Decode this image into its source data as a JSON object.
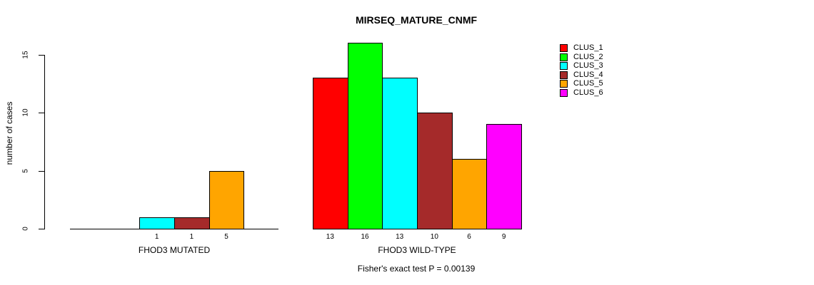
{
  "chart_data": {
    "type": "bar",
    "title": "MIRSEQ_MATURE_CNMF",
    "ylabel": "number of cases",
    "xlabel": "",
    "ylim": [
      0,
      16.5
    ],
    "yticks": [
      0,
      5,
      10,
      15
    ],
    "grid": false,
    "legend_position": "right",
    "legend": [
      "CLUS_1",
      "CLUS_2",
      "CLUS_3",
      "CLUS_4",
      "CLUS_5",
      "CLUS_6"
    ],
    "colors": [
      "#ff0000",
      "#00ff00",
      "#00ffff",
      "#a52a2a",
      "#ffa500",
      "#ff00ff"
    ],
    "categories": [
      "FHOD3 MUTATED",
      "FHOD3 WILD-TYPE"
    ],
    "series": [
      {
        "name": "CLUS_1",
        "values": [
          0,
          13
        ]
      },
      {
        "name": "CLUS_2",
        "values": [
          0,
          16
        ]
      },
      {
        "name": "CLUS_3",
        "values": [
          1,
          13
        ]
      },
      {
        "name": "CLUS_4",
        "values": [
          1,
          10
        ]
      },
      {
        "name": "CLUS_5",
        "values": [
          5,
          6
        ]
      },
      {
        "name": "CLUS_6",
        "values": [
          0,
          9
        ]
      }
    ],
    "bar_value_labels": [
      [
        "",
        "",
        "1",
        "1",
        "5",
        ""
      ],
      [
        "13",
        "16",
        "13",
        "10",
        "6",
        "9"
      ]
    ],
    "annotation": "Fisher's exact test P = 0.00139"
  }
}
